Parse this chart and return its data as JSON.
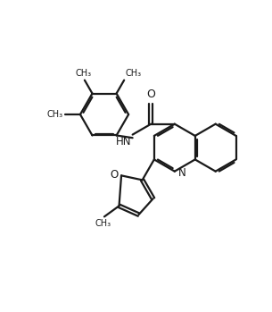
{
  "bg_color": "#ffffff",
  "line_color": "#1a1a1a",
  "line_width": 1.6,
  "figsize": [
    3.05,
    3.49
  ],
  "dpi": 100,
  "xlim": [
    0,
    10.0
  ],
  "ylim": [
    0,
    11.5
  ]
}
